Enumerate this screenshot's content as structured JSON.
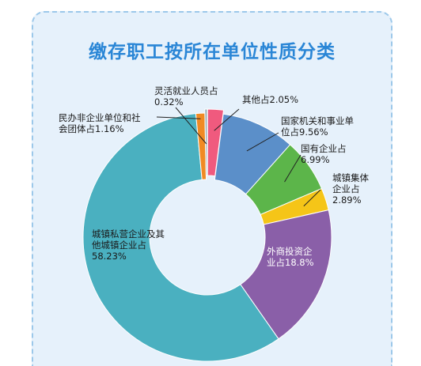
{
  "chart_data": {
    "type": "pie",
    "title": "缴存职工按所在单位性质分类",
    "slices": [
      {
        "label": "其他占2.05%",
        "value": 2.05,
        "color": "#f05a7e"
      },
      {
        "label": "国家机关和事业单位占9.56%",
        "value": 9.56,
        "color": "#5b8fc9"
      },
      {
        "label": "国有企业占6.99%",
        "value": 6.99,
        "color": "#5cb54a"
      },
      {
        "label": "城镇集体企业占2.89%",
        "value": 2.89,
        "color": "#f5c518"
      },
      {
        "label": "外商投资企业占18.8%",
        "value": 18.8,
        "color": "#8a5fa8"
      },
      {
        "label": "城镇私营企业及其他城镇企业占58.23%",
        "value": 58.23,
        "color": "#4ab0c0"
      },
      {
        "label": "民办非企业单位和社会团体占1.16%",
        "value": 1.16,
        "color": "#f08a24"
      },
      {
        "label": "灵活就业人员占0.32%",
        "value": 0.32,
        "color": "#9ab0b8"
      }
    ]
  },
  "labels": {
    "other": [
      "其他占2.05%"
    ],
    "gov": [
      "国家机关和事业单",
      "位占9.56%"
    ],
    "soe": [
      "国有企业占",
      "6.99%"
    ],
    "collective": [
      "城镇集体",
      "企业占",
      "2.89%"
    ],
    "foreign": [
      "外商投资企",
      "业占18.8%"
    ],
    "private": [
      "城镇私营企业及其",
      "他城镇企业占",
      "58.23%"
    ],
    "nonprofit": [
      "民办非企业单位和社",
      "会团体占1.16%"
    ],
    "flexible": [
      "灵活就业人员占",
      "0.32%"
    ]
  }
}
